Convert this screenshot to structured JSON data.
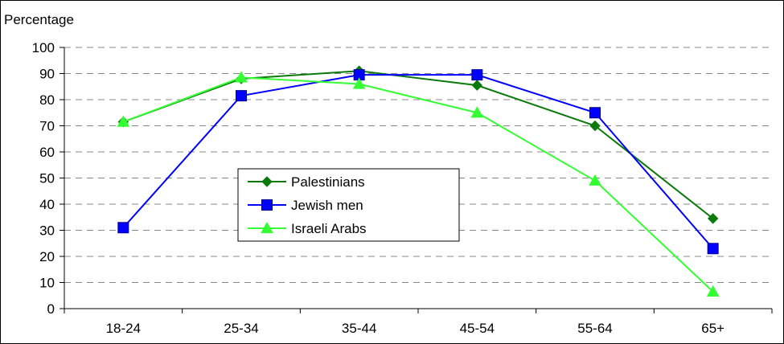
{
  "chart_data": {
    "type": "line",
    "title": "",
    "xlabel": "",
    "ylabel": "Percentage",
    "categories": [
      "18-24",
      "25-34",
      "35-44",
      "45-54",
      "55-64",
      "65+"
    ],
    "ylim": [
      0,
      100
    ],
    "yticks": [
      0,
      10,
      20,
      30,
      40,
      50,
      60,
      70,
      80,
      90,
      100
    ],
    "grid": "horizontal-dashed",
    "legend_position": "center",
    "series": [
      {
        "name": "Palestinians",
        "color": "#0a7a0a",
        "marker": "diamond",
        "values": [
          71.5,
          88,
          91,
          85.5,
          70,
          34.5
        ]
      },
      {
        "name": "Jewish men",
        "color": "#0000ff",
        "marker": "square",
        "values": [
          31,
          81.5,
          89.5,
          89.5,
          75,
          23
        ]
      },
      {
        "name": "Israeli Arabs",
        "color": "#33ff33",
        "marker": "triangle",
        "values": [
          71.5,
          88.5,
          86,
          75,
          49,
          6.5
        ]
      }
    ]
  }
}
